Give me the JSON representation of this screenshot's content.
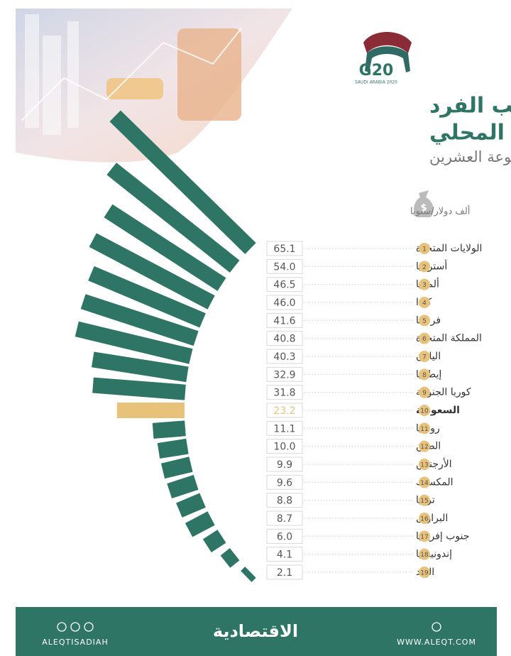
{
  "logo": {
    "text": "G20",
    "subtitle": "SAUDI ARABIA 2020"
  },
  "chart_data": {
    "type": "fan-bar",
    "title": [
      "نصيب الفرد",
      "من الناتج المحلي"
    ],
    "subtitle": "في دول مجموعة العشرين",
    "unit_label": "ألف دولار/سنويا",
    "ranks": [
      1,
      2,
      3,
      4,
      5,
      6,
      7,
      8,
      9,
      10,
      11,
      12,
      13,
      14,
      15,
      16,
      17,
      18,
      19
    ],
    "categories": [
      "الولايات المتحدة",
      "أستراليا",
      "ألمانيا",
      "كندا",
      "فرنسا",
      "المملكة المتحدة",
      "اليابان",
      "إيطاليا",
      "كوريا الجنوبية",
      "السعودية",
      "روسيا",
      "الصين",
      "الأرجنتين",
      "المكسيك",
      "تركيا",
      "البرازيل",
      "جنوب إفريقيا",
      "إندونيسيا",
      "الهند"
    ],
    "values": [
      65.1,
      54.0,
      46.5,
      46.0,
      41.6,
      40.8,
      40.3,
      32.9,
      31.8,
      23.2,
      11.1,
      10.0,
      9.9,
      9.6,
      8.8,
      8.7,
      6.0,
      4.1,
      2.1
    ],
    "value_labels": [
      "65.1",
      "54.0",
      "46.5",
      "46.0",
      "41.6",
      "40.8",
      "40.3",
      "32.9",
      "31.8",
      "23.2",
      "11.1",
      "10.0",
      "9.9",
      "9.6",
      "8.8",
      "8.7",
      "6.0",
      "4.1",
      "2.1"
    ],
    "color": "#2e7566",
    "colors": [
      "#2e7566",
      "#2e7566",
      "#2e7566",
      "#2e7566",
      "#2e7566",
      "#2e7566",
      "#2e7566",
      "#2e7566",
      "#2e7566",
      "#e8c27a",
      "#2e7566",
      "#2e7566",
      "#2e7566",
      "#2e7566",
      "#2e7566",
      "#2e7566",
      "#2e7566",
      "#2e7566",
      "#2e7566"
    ]
  },
  "footer": {
    "brand": "الاقتصادية",
    "social": "ALEQTISADIAH",
    "website": "WWW.ALEQT.COM"
  }
}
